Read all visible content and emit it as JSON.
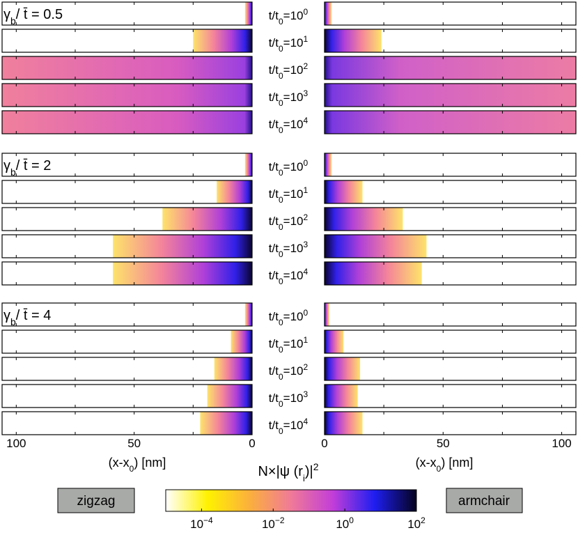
{
  "chart_data": {
    "type": "wavepacket-panels",
    "time_label": {
      "text": "t/t",
      "sub": "0",
      "eq": "=10"
    },
    "groups": [
      {
        "label": {
          "symbol": "γ",
          "sub": "b",
          "rest": "/ t̄ = 0.5"
        },
        "rows": [
          {
            "exponent": "0",
            "zigzag": 3,
            "armchair": 3
          },
          {
            "exponent": "1",
            "zigzag": 25,
            "armchair": 24
          },
          {
            "exponent": "2",
            "zigzag": 106,
            "armchair": 106
          },
          {
            "exponent": "3",
            "zigzag": 106,
            "armchair": 106
          },
          {
            "exponent": "4",
            "zigzag": 106,
            "armchair": 106
          }
        ]
      },
      {
        "label": {
          "symbol": "γ",
          "sub": "b",
          "rest": "/ t̄ = 2"
        },
        "rows": [
          {
            "exponent": "0",
            "zigzag": 3,
            "armchair": 3
          },
          {
            "exponent": "1",
            "zigzag": 15,
            "armchair": 16
          },
          {
            "exponent": "2",
            "zigzag": 38,
            "armchair": 33
          },
          {
            "exponent": "3",
            "zigzag": 59,
            "armchair": 43
          },
          {
            "exponent": "4",
            "zigzag": 59,
            "armchair": 41
          }
        ]
      },
      {
        "label": {
          "symbol": "γ",
          "sub": "b",
          "rest": "/ t̄ = 4"
        },
        "rows": [
          {
            "exponent": "0",
            "zigzag": 3,
            "armchair": 2
          },
          {
            "exponent": "1",
            "zigzag": 9,
            "armchair": 8
          },
          {
            "exponent": "2",
            "zigzag": 16,
            "armchair": 15
          },
          {
            "exponent": "3",
            "zigzag": 19,
            "armchair": 14
          },
          {
            "exponent": "4",
            "zigzag": 22,
            "armchair": 16
          }
        ]
      }
    ],
    "zigzag": {
      "title": "zigzag",
      "xlim": [
        106,
        0
      ],
      "xticks": [
        100,
        50,
        0
      ],
      "xminor": [
        75,
        25
      ]
    },
    "armchair": {
      "title": "armchair",
      "xlim": [
        0,
        106
      ],
      "xticks": [
        0,
        50,
        100
      ],
      "xminor": [
        25,
        75
      ]
    },
    "xlabel": {
      "text": "(x-x",
      "sub": "0",
      "rest": ") [nm]"
    },
    "colorbar": {
      "label": {
        "text": "N×",
        "psi": "|ψ (r",
        "sub": "i",
        "rest": ")|",
        "sup": "2"
      },
      "scale": "log",
      "clim": [
        1e-05,
        100
      ],
      "ticks": [
        {
          "value": 0.0001,
          "label": "10",
          "exponent": "−4"
        },
        {
          "value": 0.01,
          "label": "10",
          "exponent": "−2"
        },
        {
          "value": 1,
          "label": "10",
          "exponent": "0"
        },
        {
          "value": 100,
          "label": "10",
          "exponent": "2"
        }
      ],
      "colors": [
        "#ffffff",
        "#fff200",
        "#fbb03c",
        "#f07a98",
        "#c23ed8",
        "#1e1ef0",
        "#05021e"
      ]
    }
  }
}
